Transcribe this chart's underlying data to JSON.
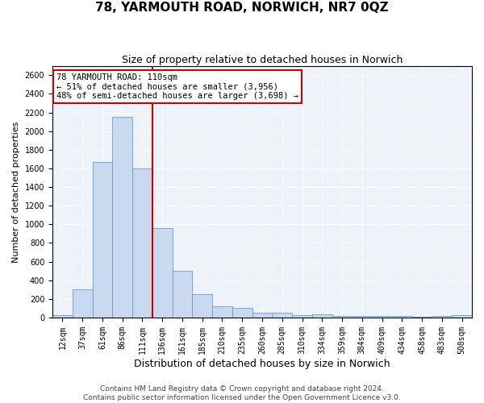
{
  "title": "78, YARMOUTH ROAD, NORWICH, NR7 0QZ",
  "subtitle": "Size of property relative to detached houses in Norwich",
  "xlabel": "Distribution of detached houses by size in Norwich",
  "ylabel": "Number of detached properties",
  "footer_line1": "Contains HM Land Registry data © Crown copyright and database right 2024.",
  "footer_line2": "Contains public sector information licensed under the Open Government Licence v3.0.",
  "annotation_title": "78 YARMOUTH ROAD: 110sqm",
  "annotation_line2": "← 51% of detached houses are smaller (3,956)",
  "annotation_line3": "48% of semi-detached houses are larger (3,698) →",
  "bar_categories": [
    "12sqm",
    "37sqm",
    "61sqm",
    "86sqm",
    "111sqm",
    "136sqm",
    "161sqm",
    "185sqm",
    "210sqm",
    "235sqm",
    "260sqm",
    "285sqm",
    "310sqm",
    "334sqm",
    "359sqm",
    "384sqm",
    "409sqm",
    "434sqm",
    "458sqm",
    "483sqm",
    "508sqm"
  ],
  "bar_values": [
    25,
    300,
    1670,
    2150,
    1600,
    960,
    500,
    250,
    125,
    100,
    50,
    50,
    30,
    35,
    20,
    20,
    20,
    20,
    5,
    20,
    25
  ],
  "bar_color": "#c8d9f0",
  "bar_edge_color": "#6699cc",
  "vline_x": 4,
  "vline_color": "#cc0000",
  "ylim": [
    0,
    2700
  ],
  "yticks": [
    0,
    200,
    400,
    600,
    800,
    1000,
    1200,
    1400,
    1600,
    1800,
    2000,
    2200,
    2400,
    2600
  ],
  "bg_color": "#eef2fb",
  "grid_color": "#ffffff",
  "annotation_box_color": "#cc0000",
  "title_fontsize": 11,
  "subtitle_fontsize": 9,
  "xlabel_fontsize": 9,
  "ylabel_fontsize": 8,
  "tick_fontsize": 7,
  "annotation_fontsize": 7.5,
  "footer_fontsize": 6.5
}
